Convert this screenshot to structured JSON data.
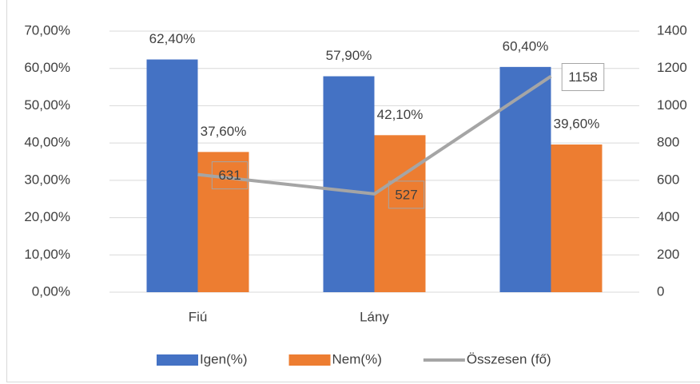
{
  "chart_data": {
    "type": "bar",
    "categories": [
      "Fiú",
      "Lány",
      null
    ],
    "series": [
      {
        "name": "Igen(%)",
        "color": "#4472c4",
        "values": [
          62.4,
          57.9,
          60.4
        ],
        "value_labels": [
          "62,40%",
          "57,90%",
          "60,40%"
        ]
      },
      {
        "name": "Nem(%)",
        "color": "#ed7d31",
        "values": [
          37.6,
          42.1,
          39.6
        ],
        "value_labels": [
          "37,60%",
          "42,10%",
          "39,60%"
        ]
      },
      {
        "name": "Összesen (fő)",
        "color": "#a5a5a5",
        "type": "line",
        "axis": "y2",
        "values": [
          631,
          527,
          1158
        ]
      }
    ],
    "ylim": [
      0,
      70
    ],
    "yticks": [
      {
        "value": 0,
        "label": "0,00%"
      },
      {
        "value": 10,
        "label": "10,00%"
      },
      {
        "value": 20,
        "label": "20,00%"
      },
      {
        "value": 30,
        "label": "30,00%"
      },
      {
        "value": 40,
        "label": "40,00%"
      },
      {
        "value": 50,
        "label": "50,00%"
      },
      {
        "value": 60,
        "label": "60,00%"
      },
      {
        "value": 70,
        "label": "70,00%"
      }
    ],
    "y2lim": [
      0,
      1400
    ],
    "y2ticks": [
      0,
      200,
      400,
      600,
      800,
      1000,
      1200,
      1400
    ],
    "grid": true,
    "legend": "bottom"
  }
}
